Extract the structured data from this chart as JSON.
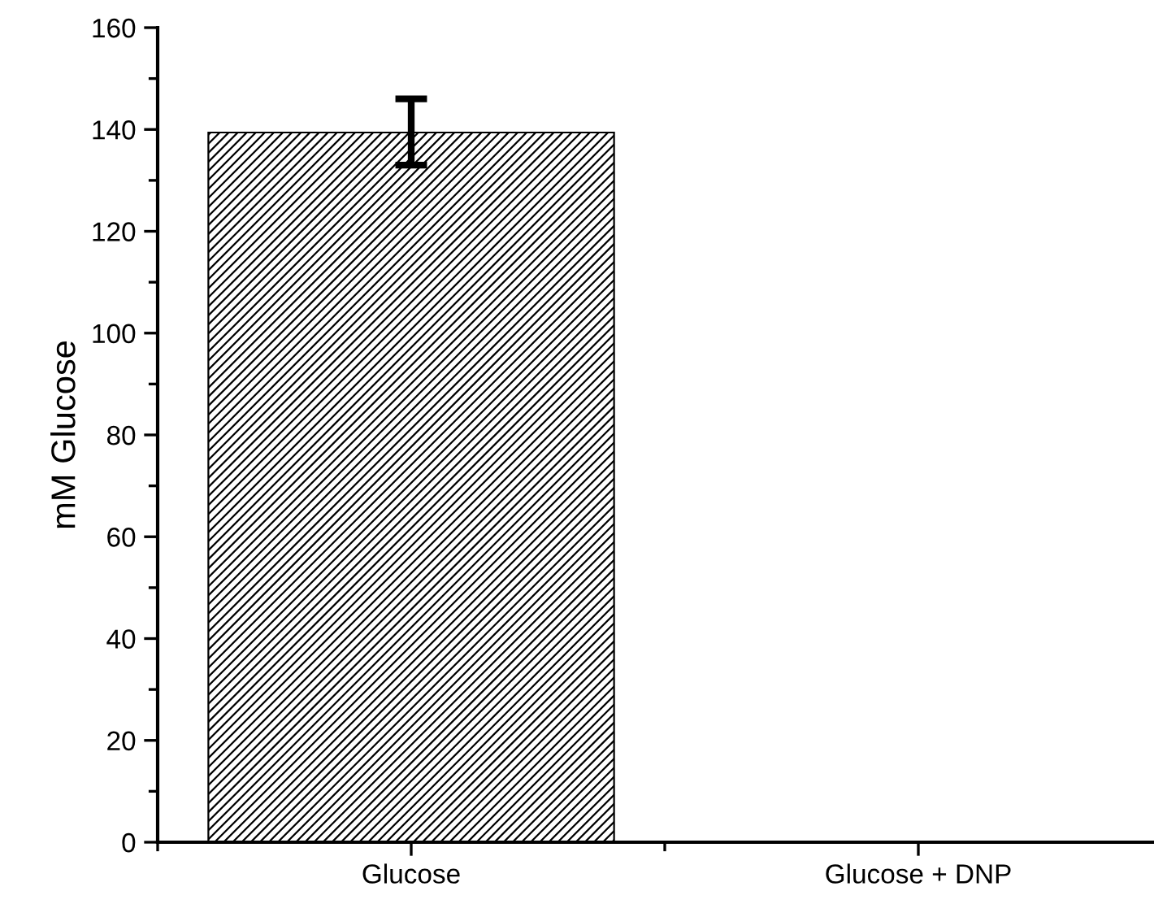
{
  "chart_data": {
    "type": "bar",
    "ylabel": "mM Glucose",
    "categories": [
      "Glucose",
      "Glucose + DNP"
    ],
    "values": [
      139.4,
      0
    ],
    "errors": [
      [
        133,
        146
      ],
      null
    ],
    "color": "#000000",
    "ylim": [
      0,
      160
    ],
    "yticks": [
      0,
      20,
      40,
      60,
      80,
      100,
      120,
      140,
      160
    ],
    "grid": false,
    "legend": false
  }
}
